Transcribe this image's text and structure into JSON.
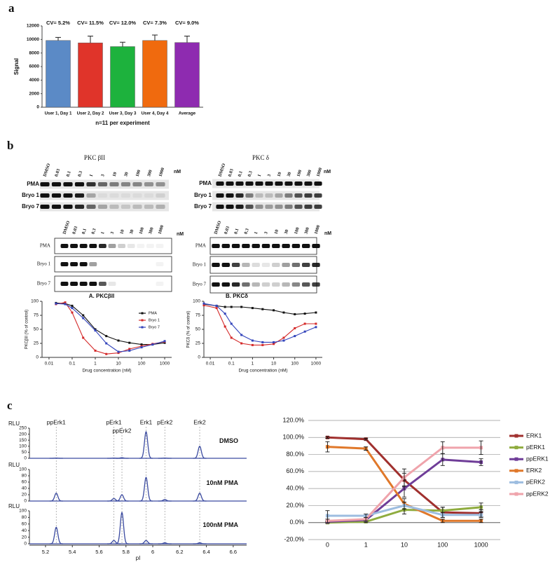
{
  "panel_labels": [
    "a",
    "b",
    "c"
  ],
  "blots": [
    {
      "title": "PKC βII",
      "columns": [
        "DMSO",
        "0.03",
        "0.1",
        "0.3",
        "1",
        "3",
        "10",
        "30",
        "100",
        "300",
        "1000"
      ],
      "unit": "nM",
      "rows": [
        "PMA",
        "Bryo 1",
        "Bryo 7"
      ]
    },
    {
      "title": "PKC δ",
      "columns": [
        "DMSO",
        "0.03",
        "0.1",
        "0.3",
        "1",
        "3",
        "10",
        "30",
        "100",
        "300",
        "1000"
      ],
      "unit": "nM",
      "rows": [
        "PMA",
        "Bryo 1",
        "Bryo 7"
      ]
    },
    {
      "columns": [
        "DMSO",
        "0.03",
        "0.1",
        "0.3",
        "1",
        "3",
        "10",
        "30",
        "100",
        "300",
        "1000"
      ],
      "unit": "nM",
      "rows": [
        "PMA",
        "Bryo 1",
        "Bryo 7"
      ]
    },
    {
      "columns": [
        "DMSO",
        "0.03",
        "0.1",
        "0.3",
        "1",
        "3",
        "10",
        "30",
        "100",
        "300",
        "1000"
      ],
      "unit": "nM",
      "rows": [
        "PMA",
        "Bryo 1",
        "Bryo 7"
      ]
    }
  ],
  "chart_data": [
    {
      "type": "bar",
      "ylabel": "Signal",
      "xlabel": "n=11 per experiment",
      "categories": [
        "User 1, Day 1",
        "User 2, Day 2",
        "User 3, Day 3",
        "User 4, Day 4",
        "Average"
      ],
      "values": [
        9850,
        9500,
        8950,
        9850,
        9550
      ],
      "errors": [
        450,
        1000,
        650,
        800,
        950
      ],
      "colors": [
        "#5b8ac6",
        "#e0342a",
        "#1db23d",
        "#f06a0e",
        "#8e2bb0"
      ],
      "annotations": [
        "CV= 5.2%",
        "CV= 11.5%",
        "CV= 12.0%",
        "CV= 7.3%",
        "CV= 9.0%"
      ],
      "ylim": [
        0,
        12000
      ],
      "yticks": [
        0,
        2000,
        4000,
        6000,
        8000,
        10000,
        12000
      ]
    },
    {
      "type": "line",
      "title": "A. PKCβII",
      "xlabel": "Drug concentration (nM)",
      "ylabel": "PKCβII (% of control)",
      "xscale": "log",
      "x": [
        0.02,
        0.05,
        0.1,
        0.3,
        1,
        3,
        10,
        30,
        100,
        300,
        1000
      ],
      "series": [
        {
          "name": "PMA",
          "color": "#111111",
          "values": [
            97,
            96,
            92,
            75,
            50,
            38,
            30,
            26,
            23,
            23,
            26
          ]
        },
        {
          "name": "Bryo 1",
          "color": "#d42a2a",
          "values": [
            95,
            98,
            80,
            35,
            12,
            6,
            8,
            15,
            20,
            24,
            28
          ]
        },
        {
          "name": "Bryo 7",
          "color": "#3344bb",
          "values": [
            96,
            95,
            88,
            70,
            48,
            25,
            10,
            12,
            18,
            23,
            29
          ]
        }
      ],
      "legend": "upper right",
      "xlim": [
        0.005,
        2000
      ],
      "xticks": [
        0.01,
        0.1,
        1,
        10,
        100,
        1000
      ],
      "ylim": [
        0,
        100
      ],
      "yticks": [
        0,
        25,
        50,
        75,
        100
      ]
    },
    {
      "type": "line",
      "title": "B. PKCδ",
      "xlabel": "Drug concentration (nM)",
      "ylabel": "PKCδ (% of control)",
      "xscale": "log",
      "x": [
        0.005,
        0.02,
        0.05,
        0.1,
        0.3,
        1,
        3,
        10,
        30,
        100,
        300,
        1000
      ],
      "series": [
        {
          "name": "PMA",
          "color": "#111111",
          "values": [
            95,
            92,
            90,
            90,
            90,
            88,
            86,
            84,
            80,
            77,
            78,
            80
          ]
        },
        {
          "name": "Bryo 1",
          "color": "#d42a2a",
          "values": [
            93,
            88,
            55,
            35,
            25,
            22,
            22,
            24,
            35,
            52,
            60,
            60
          ]
        },
        {
          "name": "Bryo 7",
          "color": "#3344bb",
          "values": [
            96,
            92,
            78,
            60,
            40,
            30,
            27,
            27,
            30,
            38,
            46,
            54
          ]
        }
      ],
      "xlim": [
        0.005,
        2000
      ],
      "xticks": [
        0.01,
        0.1,
        1,
        10,
        100,
        1000
      ],
      "ylim": [
        0,
        100
      ],
      "yticks": [
        0,
        25,
        50,
        75,
        100
      ]
    },
    {
      "type": "electropherogram",
      "xlabel": "pI",
      "peak_labels": [
        "ppErk1",
        "pErk1",
        "ppErk2",
        "Erk1",
        "pErk2",
        "Erk2"
      ],
      "peak_positions": [
        5.28,
        5.71,
        5.77,
        5.95,
        6.09,
        6.35
      ],
      "xlim": [
        5.08,
        6.7
      ],
      "xticks": [
        5.2,
        5.4,
        5.6,
        5.8,
        6,
        6.2,
        6.4,
        6.6
      ],
      "panels": [
        {
          "name": "DMSO",
          "ylabel": "RLU",
          "values": [
            2,
            2,
            5,
            220,
            2,
            100
          ],
          "ylim": [
            0,
            250
          ],
          "yticks": [
            0,
            50,
            100,
            150,
            200,
            250
          ]
        },
        {
          "name": "10nM PMA",
          "ylabel": "RLU",
          "values": [
            25,
            8,
            20,
            75,
            5,
            25
          ],
          "ylim": [
            0,
            100
          ],
          "yticks": [
            0,
            20,
            40,
            60,
            80,
            100
          ]
        },
        {
          "name": "100nM PMA",
          "ylabel": "RLU",
          "values": [
            50,
            10,
            95,
            10,
            3,
            3
          ],
          "ylim": [
            0,
            100
          ],
          "yticks": [
            0,
            20,
            40,
            60,
            80,
            100
          ]
        }
      ]
    },
    {
      "type": "line",
      "categories": [
        "0",
        "1",
        "10",
        "100",
        "1000"
      ],
      "series": [
        {
          "name": "ERK1",
          "color": "#a0302e",
          "values": [
            100,
            98,
            50,
            12,
            11
          ],
          "errors": [
            1,
            1,
            8,
            6,
            4
          ]
        },
        {
          "name": "pERK1",
          "color": "#8fac3f",
          "values": [
            0,
            1,
            15,
            14,
            18
          ],
          "errors": [
            1,
            1,
            5,
            4,
            5
          ]
        },
        {
          "name": "ppERK1",
          "color": "#6f3d98",
          "values": [
            1,
            3,
            40,
            74,
            71
          ],
          "errors": [
            1,
            1,
            10,
            7,
            4
          ]
        },
        {
          "name": "ERK2",
          "color": "#e0782a",
          "values": [
            89,
            87,
            22,
            2,
            2
          ],
          "errors": [
            6,
            2,
            6,
            2,
            2
          ]
        },
        {
          "name": "pERK2",
          "color": "#9dbde0",
          "values": [
            8,
            8,
            20,
            9,
            9
          ],
          "errors": [
            6,
            2,
            4,
            3,
            3
          ]
        },
        {
          "name": "ppERK2",
          "color": "#efa3ab",
          "values": [
            2,
            4,
            53,
            88,
            88
          ],
          "errors": [
            2,
            2,
            10,
            7,
            8
          ]
        }
      ],
      "legend": "right",
      "grid": true,
      "ylim": [
        -20,
        120
      ],
      "yticks": [
        {
          "value": -20,
          "label": "-20.0%"
        },
        {
          "value": 0,
          "label": "0.0%"
        },
        {
          "value": 20,
          "label": "20.0%"
        },
        {
          "value": 40,
          "label": "40.0%"
        },
        {
          "value": 60,
          "label": "60.0%"
        },
        {
          "value": 80,
          "label": "80.0%"
        },
        {
          "value": 100,
          "label": "100.0%"
        },
        {
          "value": 120,
          "label": "120.0%"
        }
      ]
    }
  ]
}
